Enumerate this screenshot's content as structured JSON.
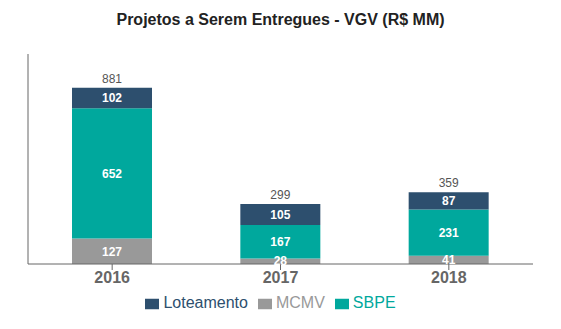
{
  "chart_data": {
    "type": "bar",
    "title": "Projetos a Serem Entregues - VGV (R$ MM)",
    "categories": [
      "2016",
      "2017",
      "2018"
    ],
    "series": [
      {
        "name": "MCMV",
        "color": "#999999",
        "values": [
          127,
          28,
          41
        ]
      },
      {
        "name": "SBPE",
        "color": "#00a89d",
        "values": [
          652,
          167,
          231
        ]
      },
      {
        "name": "Loteamento",
        "color": "#2d4f6e",
        "values": [
          102,
          105,
          87
        ]
      }
    ],
    "totals": [
      881,
      299,
      359
    ],
    "stacked": true,
    "data_labels": true,
    "ylim": [
      0,
      1050
    ],
    "tick_labels": "x",
    "legend": "bottom",
    "grid": false
  }
}
